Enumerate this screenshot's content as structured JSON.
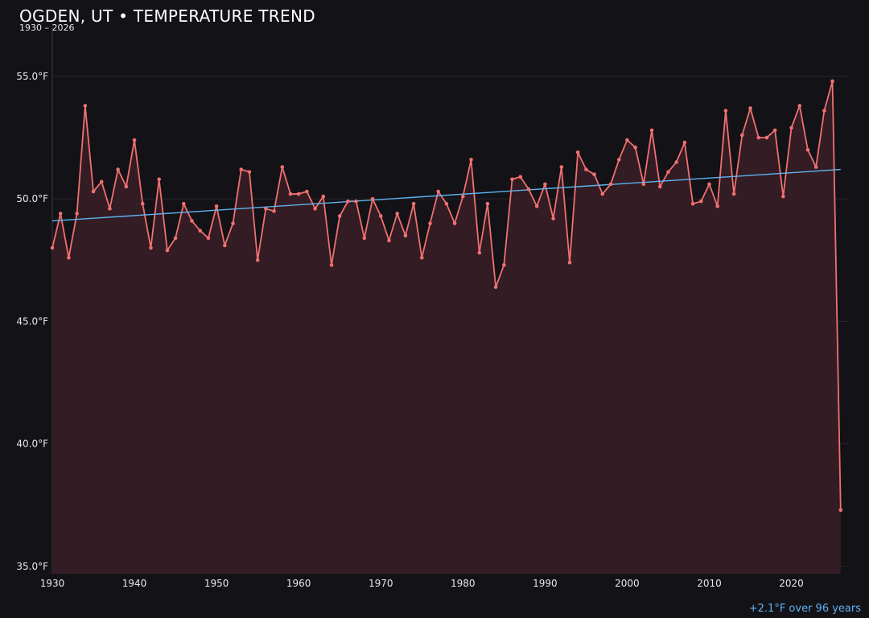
{
  "chart_data": {
    "type": "line",
    "title": "OGDEN, UT • TEMPERATURE TREND",
    "subtitle": "1930 – 2026",
    "annotation": "+2.1°F over 96 years",
    "xlabel": "",
    "ylabel": "",
    "xlim": [
      1930,
      2027
    ],
    "ylim": [
      34.7,
      57.0
    ],
    "grid": true,
    "legend": "none",
    "x_ticks": [
      1930,
      1940,
      1950,
      1960,
      1970,
      1980,
      1990,
      2000,
      2010,
      2020
    ],
    "y_ticks": [
      35,
      40,
      45,
      50,
      55
    ],
    "y_tick_labels": [
      "35.0°F",
      "40.0°F",
      "45.0°F",
      "50.0°F",
      "55.0°F"
    ],
    "colors": {
      "series": "#f07070",
      "area": "#3a1f26",
      "trend": "#5fb3f0",
      "background": "#131217",
      "grid": "#26252c"
    },
    "series": [
      {
        "x": [
          1930,
          1931,
          1932,
          1933,
          1934,
          1935,
          1936,
          1937,
          1938,
          1939,
          1940,
          1941,
          1942,
          1943,
          1944,
          1945,
          1946,
          1947,
          1948,
          1949,
          1950,
          1951,
          1952,
          1953,
          1954,
          1955,
          1956,
          1957,
          1958,
          1959,
          1960,
          1961,
          1962,
          1963,
          1964,
          1965,
          1966,
          1967,
          1968,
          1969,
          1970,
          1971,
          1972,
          1973,
          1974,
          1975,
          1976,
          1977,
          1978,
          1979,
          1980,
          1981,
          1982,
          1983,
          1984,
          1985,
          1986,
          1987,
          1988,
          1989,
          1990,
          1991,
          1992,
          1993,
          1994,
          1995,
          1996,
          1997,
          1998,
          1999,
          2000,
          2001,
          2002,
          2003,
          2004,
          2005,
          2006,
          2007,
          2008,
          2009,
          2010,
          2011,
          2012,
          2013,
          2014,
          2015,
          2016,
          2017,
          2018,
          2019,
          2020,
          2021,
          2022,
          2023,
          2024,
          2025,
          2026
        ],
        "values": [
          48.0,
          49.4,
          47.6,
          49.4,
          53.8,
          50.3,
          50.7,
          49.6,
          51.2,
          50.5,
          52.4,
          49.8,
          48.0,
          50.8,
          47.9,
          48.4,
          49.8,
          49.1,
          48.7,
          48.4,
          49.7,
          48.1,
          49.0,
          51.2,
          51.1,
          47.5,
          49.6,
          49.5,
          51.3,
          50.2,
          50.2,
          50.3,
          49.6,
          50.1,
          47.3,
          49.3,
          49.9,
          49.9,
          48.4,
          50.0,
          49.3,
          48.3,
          49.4,
          48.5,
          49.8,
          47.6,
          49.0,
          50.3,
          49.8,
          49.0,
          50.1,
          51.6,
          47.8,
          49.8,
          46.4,
          47.3,
          50.8,
          50.9,
          50.4,
          49.7,
          50.6,
          49.2,
          51.3,
          47.4,
          51.9,
          51.2,
          51.0,
          50.2,
          50.6,
          51.6,
          52.4,
          52.1,
          50.6,
          52.8,
          50.5,
          51.1,
          51.5,
          52.3,
          49.8,
          49.9,
          50.6,
          49.7,
          53.6,
          50.2,
          52.6,
          53.7,
          52.5,
          52.5,
          52.8,
          50.1,
          52.9,
          53.8,
          52.0,
          51.3,
          53.6,
          54.8,
          37.3
        ]
      }
    ],
    "trend_line": {
      "x": [
        1930,
        2026
      ],
      "values": [
        49.1,
        51.2
      ]
    }
  }
}
